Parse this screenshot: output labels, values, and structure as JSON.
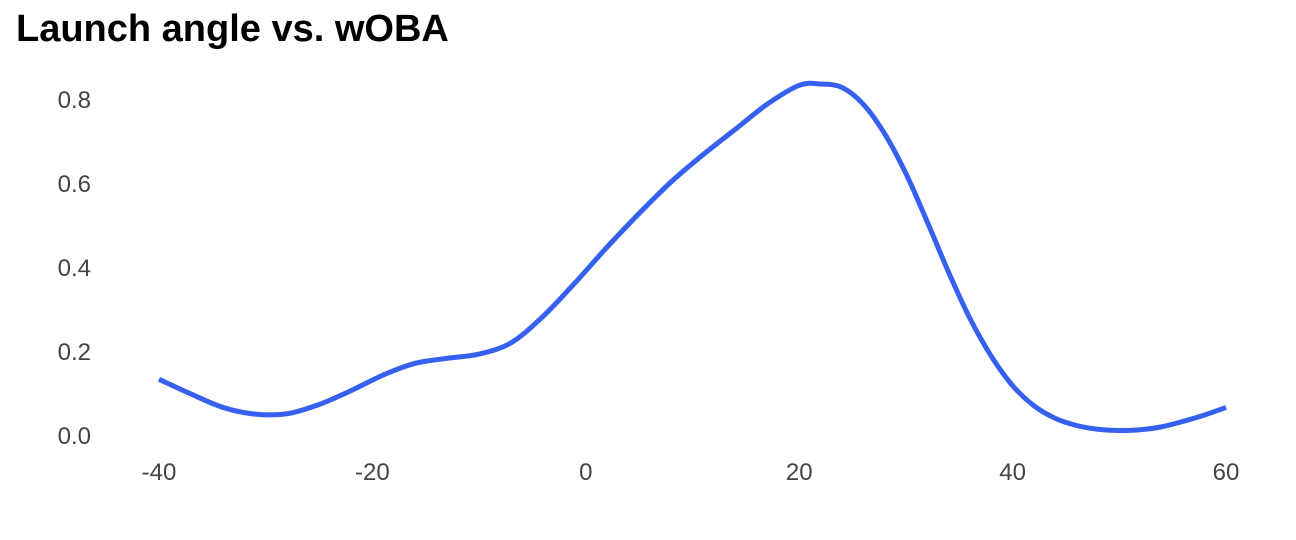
{
  "chart_data": {
    "type": "line",
    "title": "Launch angle vs. wOBA",
    "xlabel": "",
    "ylabel": "",
    "xlim": [
      -40,
      60
    ],
    "ylim": [
      0.0,
      0.8
    ],
    "xticks": [
      "-40",
      "-20",
      "0",
      "20",
      "40",
      "60"
    ],
    "yticks": [
      "0.0",
      "0.2",
      "0.4",
      "0.6",
      "0.8"
    ],
    "grid": false,
    "legend": "none",
    "series": [
      {
        "color": "#3560F0",
        "x": [
          -40,
          -37,
          -34,
          -31,
          -28,
          -25,
          -22,
          -19,
          -16,
          -13,
          -10,
          -7,
          -4,
          -1,
          2,
          5,
          8,
          11,
          14,
          17,
          20,
          22,
          24,
          26,
          28,
          30,
          32,
          34,
          36,
          38,
          40,
          42,
          44,
          46,
          48,
          50,
          52,
          54,
          56,
          58,
          60
        ],
        "y": [
          0.135,
          0.1,
          0.068,
          0.052,
          0.053,
          0.075,
          0.108,
          0.145,
          0.173,
          0.185,
          0.195,
          0.222,
          0.285,
          0.365,
          0.45,
          0.53,
          0.605,
          0.67,
          0.73,
          0.79,
          0.835,
          0.838,
          0.83,
          0.79,
          0.72,
          0.625,
          0.51,
          0.39,
          0.28,
          0.19,
          0.12,
          0.072,
          0.042,
          0.025,
          0.016,
          0.013,
          0.015,
          0.022,
          0.035,
          0.05,
          0.068
        ]
      }
    ],
    "colors": {
      "line": "#3560F0",
      "tick_text": "#444444",
      "title": "#000000"
    }
  }
}
